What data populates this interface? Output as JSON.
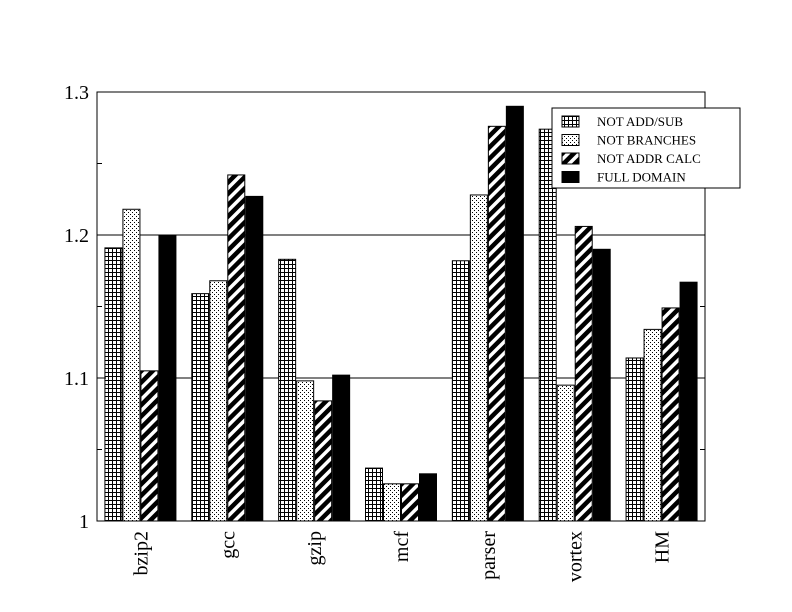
{
  "chart_data": {
    "type": "bar",
    "categories": [
      "bzip2",
      "gcc",
      "gzip",
      "mcf",
      "parser",
      "vortex",
      "HM"
    ],
    "series": [
      {
        "name": "NOT ADD/SUB",
        "pattern": "grid",
        "values": [
          1.191,
          1.159,
          1.183,
          1.037,
          1.182,
          1.274,
          1.114
        ]
      },
      {
        "name": "NOT BRANCHES",
        "pattern": "dots",
        "values": [
          1.218,
          1.168,
          1.098,
          1.026,
          1.228,
          1.095,
          1.134
        ]
      },
      {
        "name": "NOT ADDR CALC",
        "pattern": "diagonal",
        "values": [
          1.105,
          1.242,
          1.084,
          1.026,
          1.276,
          1.206,
          1.149
        ]
      },
      {
        "name": "FULL DOMAIN",
        "pattern": "solid",
        "values": [
          1.2,
          1.227,
          1.102,
          1.033,
          1.29,
          1.19,
          1.167
        ]
      }
    ],
    "ylim": [
      1.0,
      1.3
    ],
    "yticks": [
      "1",
      "1.1",
      "1.2",
      "1.3"
    ],
    "ytick_values": [
      1.0,
      1.1,
      1.2,
      1.3
    ],
    "grid": true,
    "legend_position": "top-right",
    "title": "",
    "xlabel": "",
    "ylabel": ""
  }
}
